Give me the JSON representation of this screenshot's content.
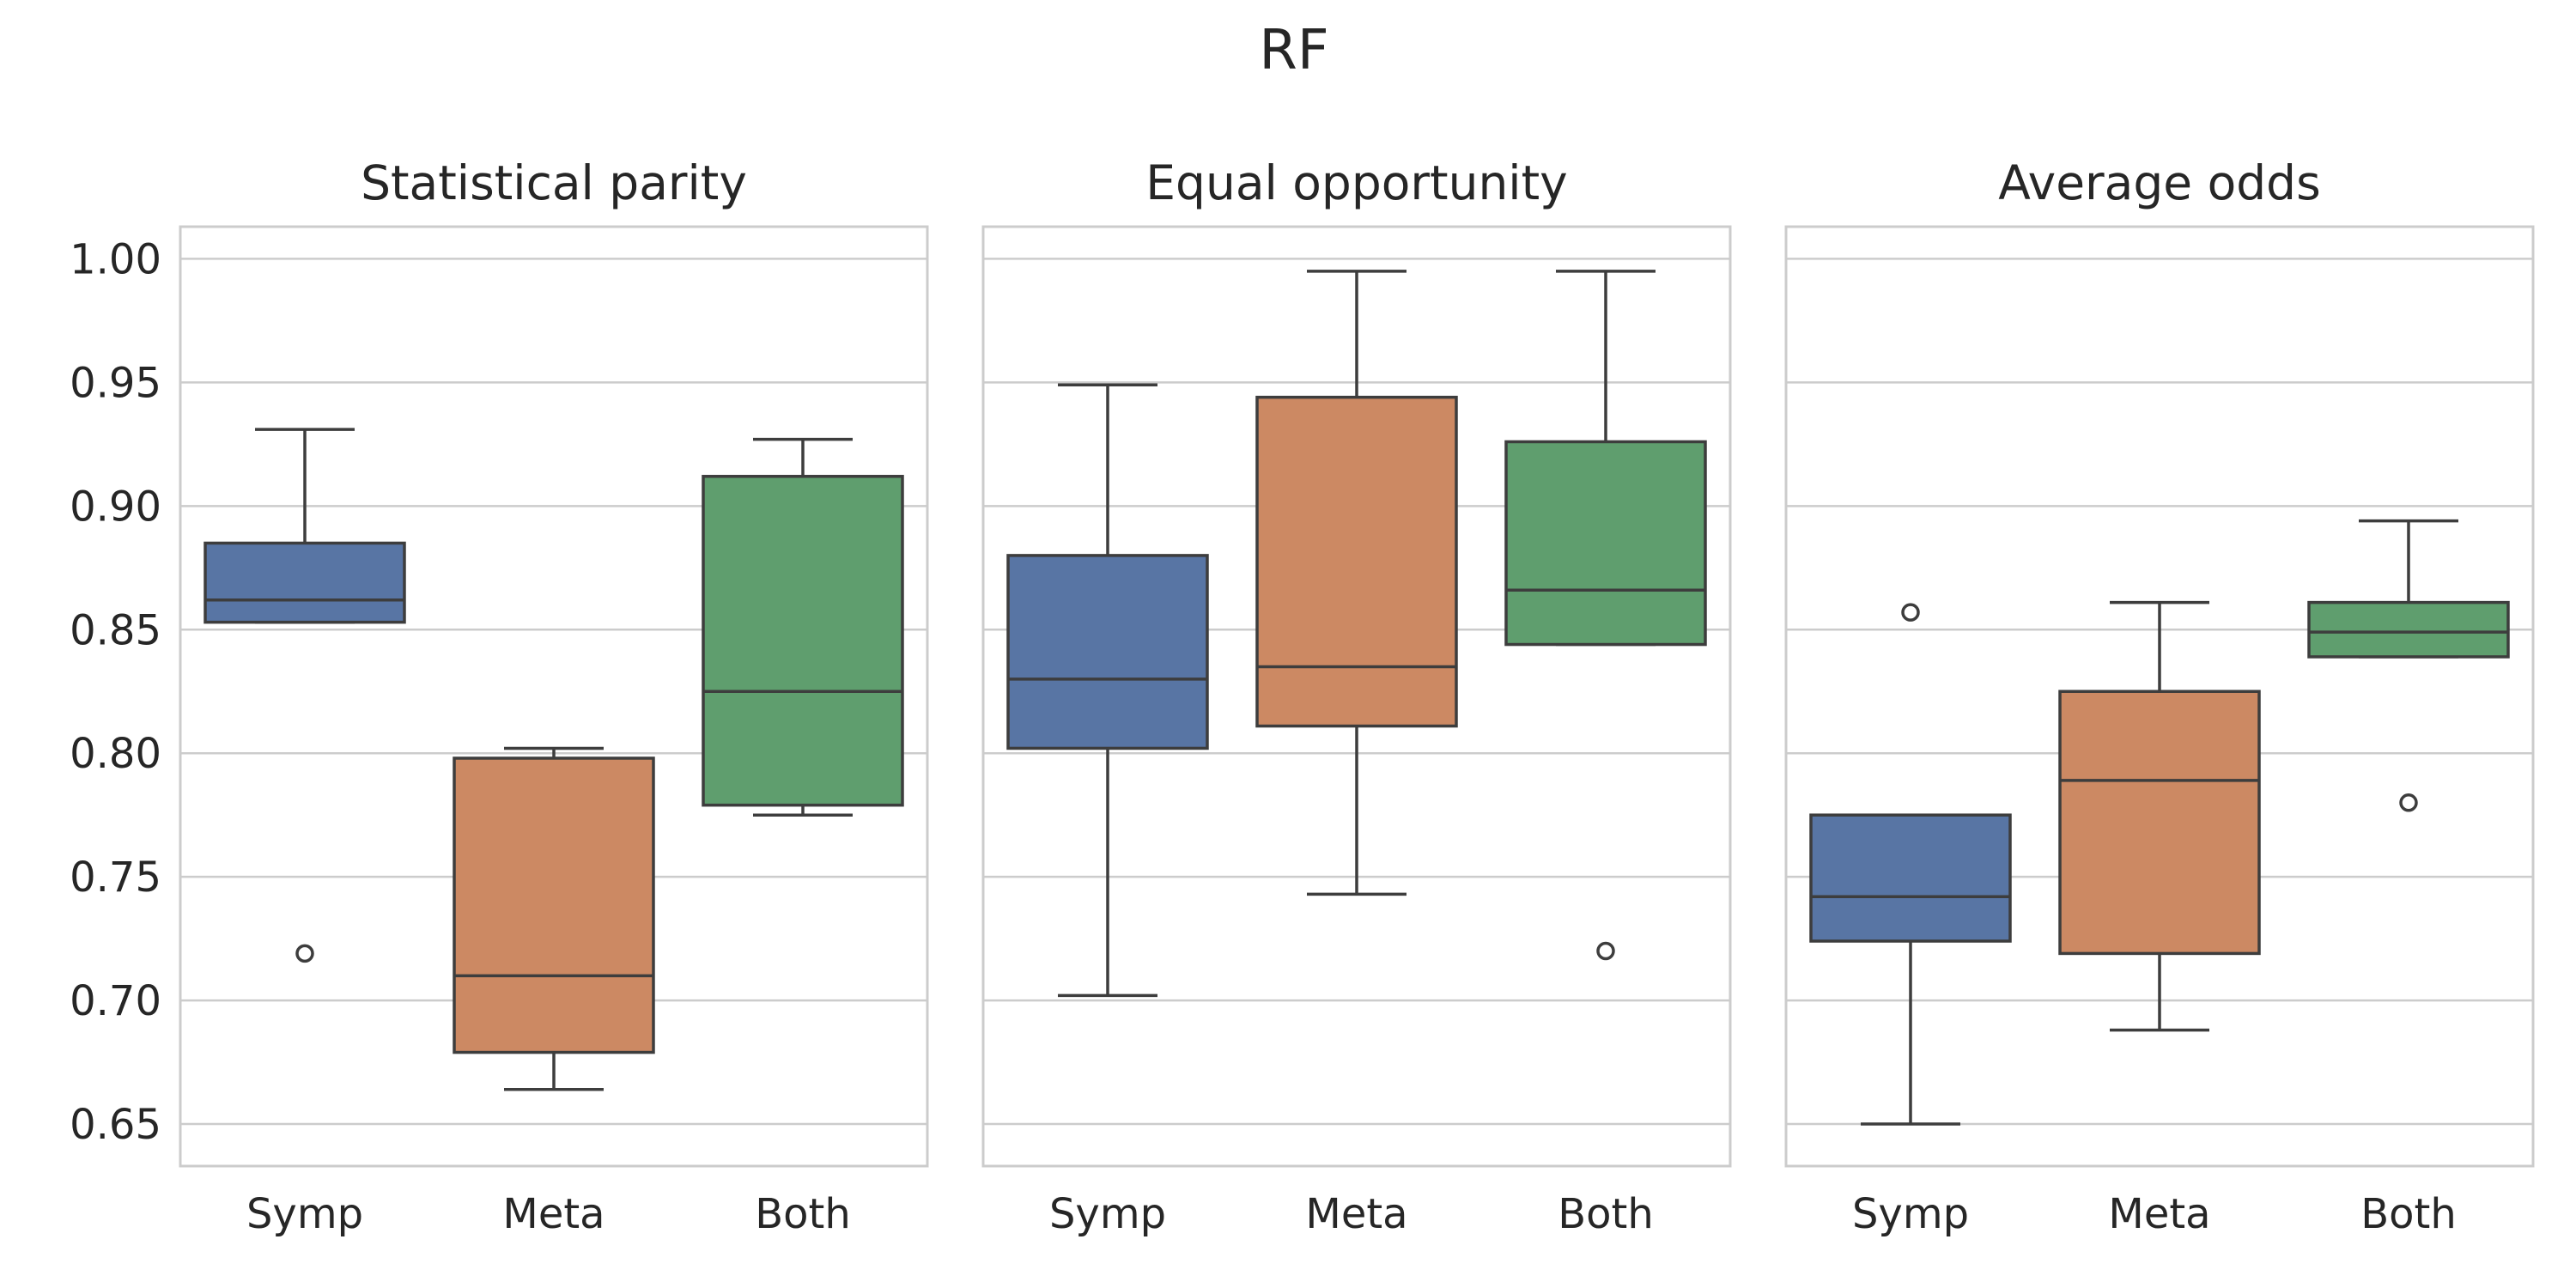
{
  "chart_data": {
    "type": "box",
    "title": "RF",
    "categories": [
      "Symp",
      "Meta",
      "Both"
    ],
    "colors": [
      "#5875a4",
      "#cc8963",
      "#5f9e6e"
    ],
    "ylim": [
      0.633,
      1.013
    ],
    "yticks": [
      0.65,
      0.7,
      0.75,
      0.8,
      0.85,
      0.9,
      0.95,
      1.0
    ],
    "ytick_labels": [
      "0.65",
      "0.70",
      "0.75",
      "0.80",
      "0.85",
      "0.90",
      "0.95",
      "1.00"
    ],
    "grid": true,
    "sharey": true,
    "panels": [
      {
        "title": "Statistical parity",
        "boxes": [
          {
            "category": "Symp",
            "whislo": 0.853,
            "q1": 0.853,
            "med": 0.862,
            "q3": 0.885,
            "whishi": 0.931,
            "fliers": [
              0.719
            ]
          },
          {
            "category": "Meta",
            "whislo": 0.664,
            "q1": 0.679,
            "med": 0.71,
            "q3": 0.798,
            "whishi": 0.802,
            "fliers": []
          },
          {
            "category": "Both",
            "whislo": 0.775,
            "q1": 0.779,
            "med": 0.825,
            "q3": 0.912,
            "whishi": 0.927,
            "fliers": []
          }
        ]
      },
      {
        "title": "Equal opportunity",
        "boxes": [
          {
            "category": "Symp",
            "whislo": 0.702,
            "q1": 0.802,
            "med": 0.83,
            "q3": 0.88,
            "whishi": 0.949,
            "fliers": []
          },
          {
            "category": "Meta",
            "whislo": 0.743,
            "q1": 0.811,
            "med": 0.835,
            "q3": 0.944,
            "whishi": 0.995,
            "fliers": []
          },
          {
            "category": "Both",
            "whislo": 0.844,
            "q1": 0.844,
            "med": 0.866,
            "q3": 0.926,
            "whishi": 0.995,
            "fliers": [
              0.72
            ]
          }
        ]
      },
      {
        "title": "Average odds",
        "boxes": [
          {
            "category": "Symp",
            "whislo": 0.65,
            "q1": 0.724,
            "med": 0.742,
            "q3": 0.775,
            "whishi": 0.775,
            "fliers": [
              0.857
            ]
          },
          {
            "category": "Meta",
            "whislo": 0.688,
            "q1": 0.719,
            "med": 0.789,
            "q3": 0.825,
            "whishi": 0.861,
            "fliers": []
          },
          {
            "category": "Both",
            "whislo": 0.839,
            "q1": 0.839,
            "med": 0.849,
            "q3": 0.861,
            "whishi": 0.894,
            "fliers": [
              0.78
            ]
          }
        ]
      }
    ]
  }
}
